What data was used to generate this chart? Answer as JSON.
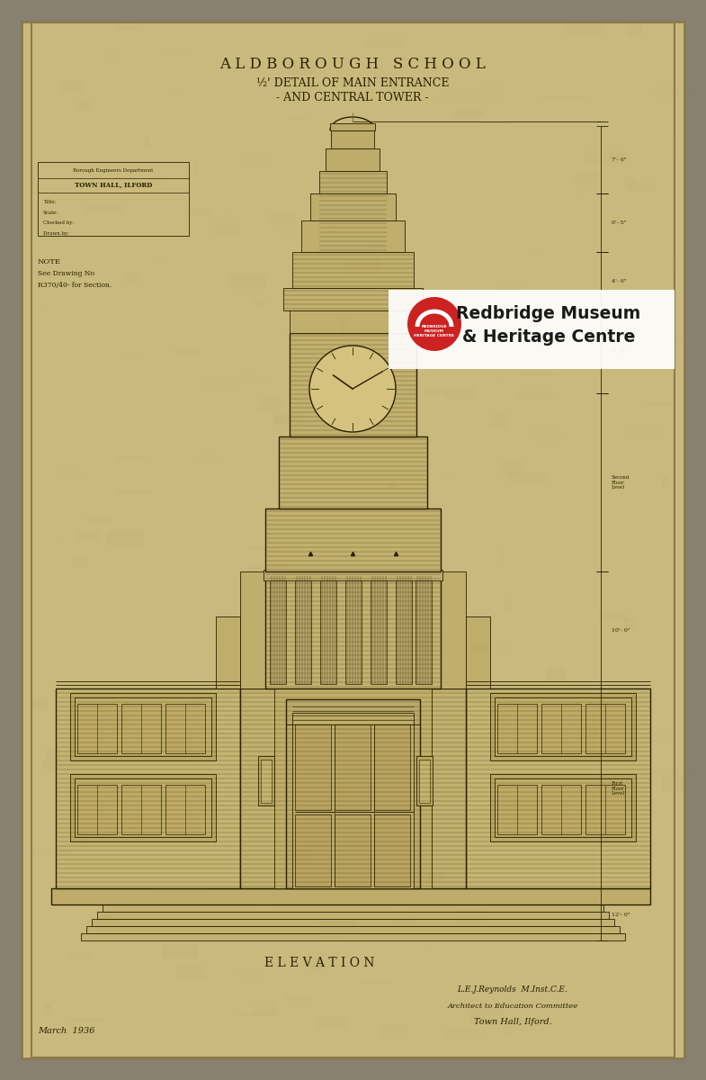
{
  "bg_color": "#888070",
  "paper_color": "#c9b97c",
  "paper_edge": "#8a7a50",
  "line_color": "#2a2000",
  "title1": "A L D B O R O U G H   S C H O O L",
  "title2": "½' DETAIL OF MAIN ENTRANCE",
  "title3": "- AND CENTRAL TOWER -",
  "label_elevation": "E L E V A T I O N",
  "label_note1": "NOTE",
  "label_note2": "See Drawing No",
  "label_note3": "R370/40- for Section.",
  "label_date": "March  1936",
  "label_architect": "L.E.J.Reynolds  M.Inst.C.E.",
  "label_committee": "Architect to Education Committee",
  "label_townhall": "Town Hall, Ilford.",
  "watermark_text1": "Redbridge Museum",
  "watermark_text2": "& Heritage Centre",
  "tb_line1": "Borough Engineers Department",
  "tb_line2": "TOWN HALL, ILFORD"
}
